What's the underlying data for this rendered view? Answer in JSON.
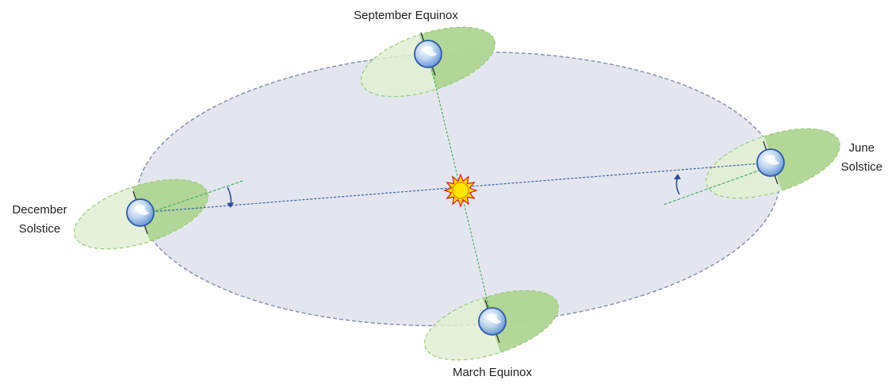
{
  "labels": {
    "september": [
      "September Equinox"
    ],
    "june": [
      "June",
      "Solstice"
    ],
    "december": [
      "December",
      "Solstice"
    ],
    "march": [
      "March Equinox"
    ]
  }
}
